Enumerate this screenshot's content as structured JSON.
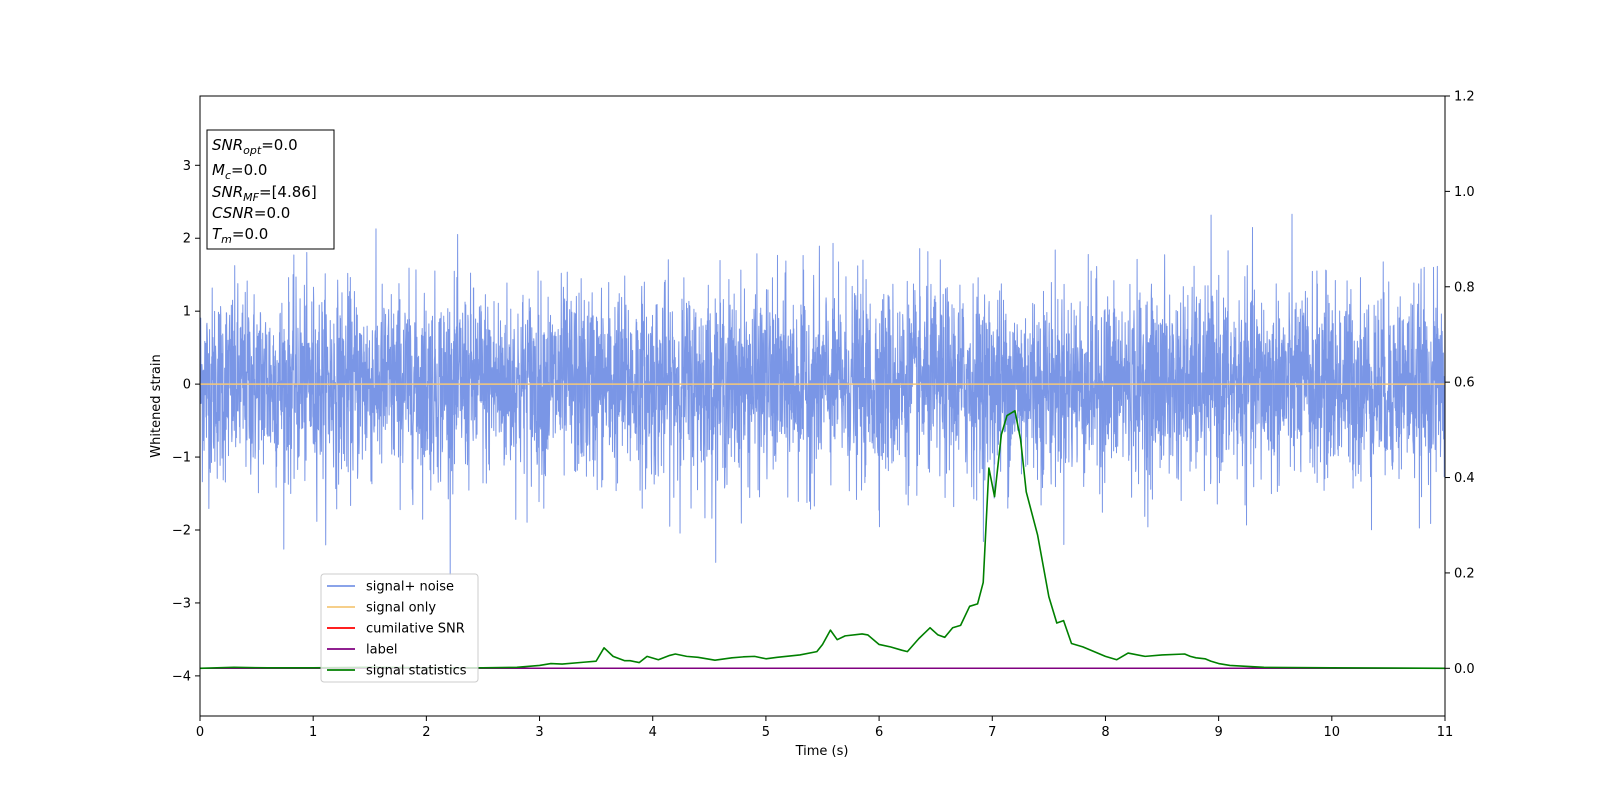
{
  "chart_data": {
    "type": "line",
    "xlabel": "Time (s)",
    "ylabel": "Whitened strain",
    "xlim": [
      0,
      11
    ],
    "ylim": [
      -4.55,
      3.95
    ],
    "y2lim": [
      -0.1,
      1.2
    ],
    "xticks": [
      "0",
      "1",
      "2",
      "3",
      "4",
      "5",
      "6",
      "7",
      "8",
      "9",
      "10",
      "11"
    ],
    "yticks": [
      "−4",
      "−3",
      "−2",
      "−1",
      "0",
      "1",
      "2",
      "3"
    ],
    "y2ticks": [
      "0.0",
      "0.2",
      "0.4",
      "0.6",
      "0.8",
      "1.0",
      "1.2"
    ],
    "grid": false,
    "legend_position": "lower-left",
    "annotation": [
      {
        "base": "SNR",
        "sub": "opt",
        "value": "=0.0"
      },
      {
        "base": "M",
        "sub": "c",
        "value": "=0.0"
      },
      {
        "base": "SNR",
        "sub": "MF",
        "value": "=[4.86]"
      },
      {
        "base": "CSNR",
        "sub": "",
        "value": "=0.0"
      },
      {
        "base": "T",
        "sub": "m",
        "value": "=0.0"
      }
    ],
    "series": [
      {
        "name": "signal+ noise",
        "axis": "left",
        "color": "#7a96e6",
        "envelope": {
          "typical_low": -1.3,
          "typical_high": 1.3,
          "peak_low": -3.02,
          "peak_high": 2.73
        }
      },
      {
        "name": "signal only",
        "axis": "left",
        "color": "#f5c87a",
        "y_constant": 0
      },
      {
        "name": "cumilative SNR",
        "axis": "left",
        "color": "#ff0000",
        "y_constant": 0
      },
      {
        "name": "label",
        "axis": "right",
        "color": "#800080",
        "y_constant": 0
      },
      {
        "name": "signal statistics",
        "axis": "right",
        "color": "#008000",
        "x": [
          0,
          0.3,
          0.6,
          1.0,
          1.5,
          2.0,
          2.5,
          2.8,
          3.0,
          3.1,
          3.2,
          3.4,
          3.5,
          3.57,
          3.65,
          3.75,
          3.8,
          3.88,
          3.95,
          4.05,
          4.15,
          4.2,
          4.3,
          4.4,
          4.55,
          4.7,
          4.8,
          4.9,
          5.0,
          5.1,
          5.3,
          5.45,
          5.5,
          5.57,
          5.63,
          5.7,
          5.85,
          5.9,
          6.0,
          6.1,
          6.2,
          6.25,
          6.35,
          6.45,
          6.52,
          6.58,
          6.65,
          6.72,
          6.8,
          6.87,
          6.92,
          6.97,
          7.02,
          7.08,
          7.13,
          7.2,
          7.25,
          7.3,
          7.4,
          7.5,
          7.57,
          7.63,
          7.7,
          7.8,
          7.9,
          8.0,
          8.1,
          8.2,
          8.35,
          8.5,
          8.7,
          8.75,
          8.8,
          8.88,
          8.93,
          9.0,
          9.1,
          9.4,
          10.0,
          11.0
        ],
        "y": [
          0.0,
          0.002,
          0.001,
          0.001,
          0.002,
          0.001,
          0.001,
          0.002,
          0.006,
          0.01,
          0.009,
          0.013,
          0.015,
          0.043,
          0.025,
          0.016,
          0.016,
          0.012,
          0.025,
          0.018,
          0.027,
          0.03,
          0.025,
          0.023,
          0.017,
          0.022,
          0.024,
          0.025,
          0.02,
          0.023,
          0.028,
          0.035,
          0.05,
          0.08,
          0.06,
          0.068,
          0.072,
          0.07,
          0.05,
          0.045,
          0.038,
          0.035,
          0.062,
          0.085,
          0.07,
          0.065,
          0.085,
          0.09,
          0.13,
          0.135,
          0.18,
          0.42,
          0.36,
          0.49,
          0.53,
          0.54,
          0.48,
          0.37,
          0.28,
          0.15,
          0.095,
          0.1,
          0.052,
          0.045,
          0.035,
          0.025,
          0.018,
          0.032,
          0.025,
          0.028,
          0.03,
          0.025,
          0.022,
          0.02,
          0.015,
          0.01,
          0.006,
          0.002,
          0.001,
          0.0
        ]
      }
    ]
  }
}
